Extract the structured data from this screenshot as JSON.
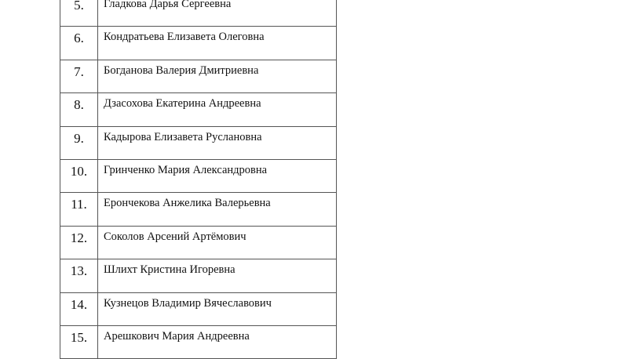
{
  "rows": [
    {
      "num": "5.",
      "name": "Гладкова Дарья Сергеевна"
    },
    {
      "num": "6.",
      "name": "Кондратьева Елизавета Олеговна"
    },
    {
      "num": "7.",
      "name": "Богданова Валерия Дмитриевна"
    },
    {
      "num": "8.",
      "name": "Дзасохова Екатерина Андреевна"
    },
    {
      "num": "9.",
      "name": "Кадырова Елизавета Руслановна"
    },
    {
      "num": "10.",
      "name": "Гринченко Мария Александровна"
    },
    {
      "num": "11.",
      "name": "Ерончекова Анжелика Валерьевна"
    },
    {
      "num": "12.",
      "name": "Соколов Арсений Артёмович"
    },
    {
      "num": "13.",
      "name": "Шлихт Кристина Игоревна"
    },
    {
      "num": "14.",
      "name": "Кузнецов Владимир Вячеславович"
    },
    {
      "num": "15.",
      "name": "Арешкович Мария Андреевна"
    }
  ]
}
